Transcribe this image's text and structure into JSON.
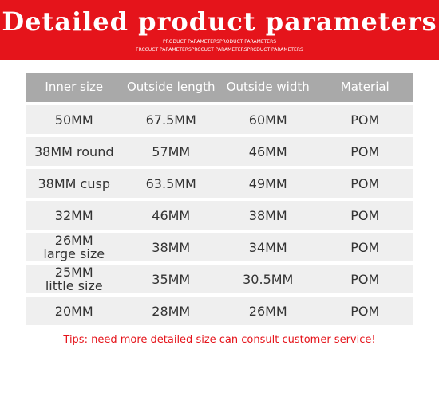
{
  "header": {
    "title": "Detailed product parameters",
    "subtitle_1": "PRODUCT PARAMETERSPRODUCT PARAMETERS",
    "subtitle_2": "FRCCUCT PARAMETERSPRCCUCT PARAMETERSPRCDUCT PARAMETERS"
  },
  "table": {
    "columns": [
      "Inner size",
      "Outside length",
      "Outside width",
      "Material"
    ],
    "rows": [
      [
        "50MM",
        "67.5MM",
        "60MM",
        "POM"
      ],
      [
        "38MM round",
        "57MM",
        "46MM",
        "POM"
      ],
      [
        "38MM cusp",
        "63.5MM",
        "49MM",
        "POM"
      ],
      [
        "32MM",
        "46MM",
        "38MM",
        "POM"
      ],
      [
        "26MM\nlarge size",
        "38MM",
        "34MM",
        "POM"
      ],
      [
        "25MM\nlittle size",
        "35MM",
        "30.5MM",
        "POM"
      ],
      [
        "20MM",
        "28MM",
        "26MM",
        "POM"
      ]
    ]
  },
  "tips": "Tips: need more detailed size can consult customer service!"
}
